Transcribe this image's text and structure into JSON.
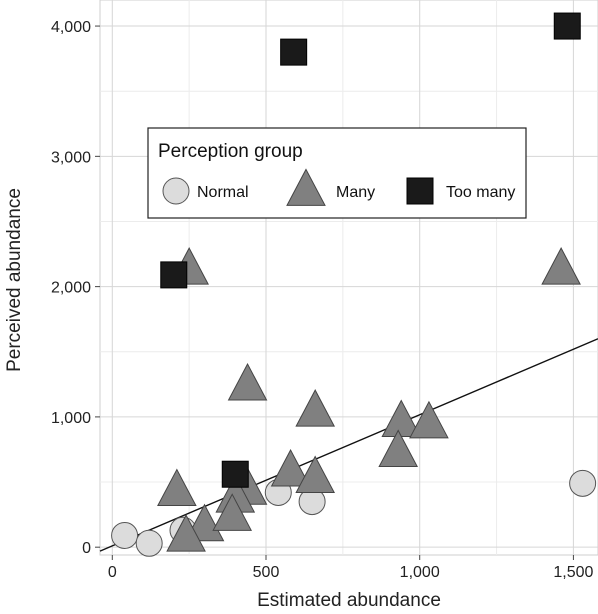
{
  "chart_data": {
    "type": "scatter",
    "title": "",
    "xlabel": "Estimated abundance",
    "ylabel": "Perceived abundance",
    "xlim": [
      -40,
      1580
    ],
    "ylim": [
      -60,
      4200
    ],
    "x_ticks": [
      0,
      500,
      1000,
      1500
    ],
    "x_tick_labels": [
      "0",
      "500",
      "1,000",
      "1,500"
    ],
    "y_ticks": [
      0,
      1000,
      2000,
      3000,
      4000
    ],
    "y_tick_labels": [
      "0",
      "1,000",
      "2,000",
      "3,000",
      "4,000"
    ],
    "grid": true,
    "legend": {
      "title": "Perception group",
      "placement": "upper-left"
    },
    "colors": {
      "Normal": "#dcdcdc",
      "Many": "#808080",
      "Too many": "#1a1a1a"
    },
    "series": [
      {
        "name": "Normal",
        "marker": "circle",
        "points": [
          {
            "x": 40,
            "y": 90
          },
          {
            "x": 120,
            "y": 30
          },
          {
            "x": 230,
            "y": 130
          },
          {
            "x": 540,
            "y": 420
          },
          {
            "x": 650,
            "y": 350
          },
          {
            "x": 1530,
            "y": 490
          }
        ]
      },
      {
        "name": "Many",
        "marker": "triangle",
        "points": [
          {
            "x": 250,
            "y": 2130
          },
          {
            "x": 1460,
            "y": 2130
          },
          {
            "x": 440,
            "y": 1240
          },
          {
            "x": 660,
            "y": 1040
          },
          {
            "x": 940,
            "y": 960
          },
          {
            "x": 1030,
            "y": 950
          },
          {
            "x": 930,
            "y": 730
          },
          {
            "x": 580,
            "y": 580
          },
          {
            "x": 660,
            "y": 530
          },
          {
            "x": 210,
            "y": 430
          },
          {
            "x": 440,
            "y": 440
          },
          {
            "x": 400,
            "y": 380
          },
          {
            "x": 300,
            "y": 160
          },
          {
            "x": 390,
            "y": 240
          },
          {
            "x": 240,
            "y": 80
          }
        ]
      },
      {
        "name": "Too many",
        "marker": "square",
        "points": [
          {
            "x": 590,
            "y": 3800
          },
          {
            "x": 1480,
            "y": 4000
          },
          {
            "x": 200,
            "y": 2090
          },
          {
            "x": 400,
            "y": 560
          }
        ]
      }
    ],
    "trend_line": {
      "x": [
        -40,
        1580
      ],
      "y": [
        -30,
        1600
      ]
    }
  }
}
